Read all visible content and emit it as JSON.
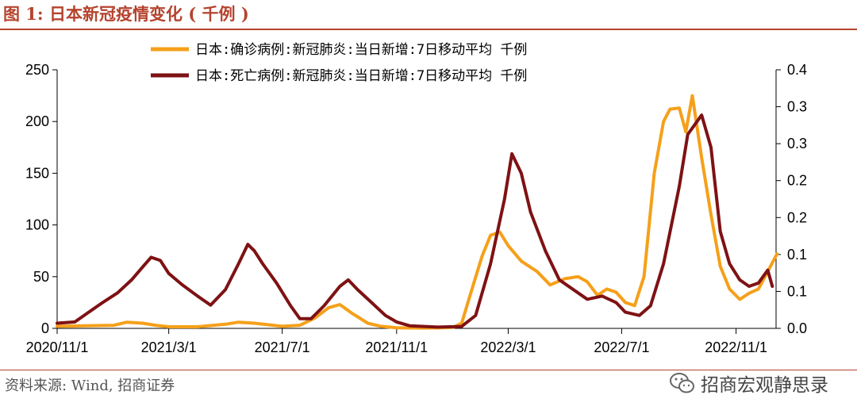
{
  "header": {
    "title": "图 1:  日本新冠疫情变化 ( 千例 )"
  },
  "footer": {
    "source": "资料来源:  Wind, 招商证券",
    "watermark": "招商宏观静思录"
  },
  "chart_data": {
    "type": "line",
    "x_tick_labels": [
      "2020/11/1",
      "2021/3/1",
      "2021/7/1",
      "2021/11/1",
      "2022/3/1",
      "2022/7/1",
      "2022/11/1"
    ],
    "y_left": {
      "range": [
        0,
        250
      ],
      "ticks": [
        "0",
        "50",
        "100",
        "150",
        "200",
        "250"
      ]
    },
    "y_right": {
      "range": [
        0,
        0.4
      ],
      "ticks": [
        "0.0",
        "0.1",
        "0.1",
        "0.2",
        "0.2",
        "0.3",
        "0.3",
        "0.4"
      ]
    },
    "legend_position": "top-center",
    "grid": false,
    "series": [
      {
        "name": "日本:确诊病例:新冠肺炎:当日新增:7日移动平均  千例",
        "axis": "left",
        "color": "#f5a01a",
        "points": [
          [
            "2020-11-01",
            2
          ],
          [
            "2020-12-01",
            2.5
          ],
          [
            "2021-01-01",
            3
          ],
          [
            "2021-01-15",
            6
          ],
          [
            "2021-02-01",
            5
          ],
          [
            "2021-02-15",
            3
          ],
          [
            "2021-03-01",
            1.5
          ],
          [
            "2021-04-01",
            1.5
          ],
          [
            "2021-05-01",
            4
          ],
          [
            "2021-05-15",
            6
          ],
          [
            "2021-06-01",
            5
          ],
          [
            "2021-07-01",
            2
          ],
          [
            "2021-07-20",
            3
          ],
          [
            "2021-08-05",
            10
          ],
          [
            "2021-08-20",
            20
          ],
          [
            "2021-09-01",
            23
          ],
          [
            "2021-09-15",
            14
          ],
          [
            "2021-10-01",
            5
          ],
          [
            "2021-10-15",
            2
          ],
          [
            "2021-11-01",
            0.5
          ],
          [
            "2021-12-01",
            0.3
          ],
          [
            "2021-12-20",
            0.5
          ],
          [
            "2022-01-01",
            1
          ],
          [
            "2022-01-10",
            5
          ],
          [
            "2022-01-20",
            35
          ],
          [
            "2022-02-01",
            70
          ],
          [
            "2022-02-10",
            90
          ],
          [
            "2022-02-20",
            93
          ],
          [
            "2022-03-01",
            80
          ],
          [
            "2022-03-15",
            65
          ],
          [
            "2022-04-01",
            55
          ],
          [
            "2022-04-15",
            42
          ],
          [
            "2022-05-01",
            48
          ],
          [
            "2022-05-15",
            50
          ],
          [
            "2022-05-25",
            45
          ],
          [
            "2022-06-05",
            32
          ],
          [
            "2022-06-15",
            38
          ],
          [
            "2022-06-25",
            35
          ],
          [
            "2022-07-05",
            25
          ],
          [
            "2022-07-15",
            22
          ],
          [
            "2022-07-25",
            50
          ],
          [
            "2022-08-05",
            150
          ],
          [
            "2022-08-15",
            200
          ],
          [
            "2022-08-22",
            212
          ],
          [
            "2022-09-01",
            213
          ],
          [
            "2022-09-08",
            190
          ],
          [
            "2022-09-15",
            225
          ],
          [
            "2022-09-25",
            165
          ],
          [
            "2022-10-05",
            110
          ],
          [
            "2022-10-15",
            60
          ],
          [
            "2022-10-25",
            38
          ],
          [
            "2022-11-05",
            28
          ],
          [
            "2022-11-15",
            34
          ],
          [
            "2022-11-25",
            38
          ],
          [
            "2022-12-05",
            55
          ],
          [
            "2022-12-15",
            72
          ]
        ]
      },
      {
        "name": "日本:死亡病例:新冠肺炎:当日新增:7日移动平均  千例",
        "axis": "right",
        "color": "#7e1214",
        "points": [
          [
            "2020-11-01",
            0.008
          ],
          [
            "2020-11-20",
            0.01
          ],
          [
            "2020-12-05",
            0.025
          ],
          [
            "2020-12-20",
            0.04
          ],
          [
            "2021-01-05",
            0.055
          ],
          [
            "2021-01-20",
            0.075
          ],
          [
            "2021-02-01",
            0.095
          ],
          [
            "2021-02-10",
            0.11
          ],
          [
            "2021-02-20",
            0.105
          ],
          [
            "2021-03-01",
            0.085
          ],
          [
            "2021-03-15",
            0.068
          ],
          [
            "2021-04-01",
            0.05
          ],
          [
            "2021-04-15",
            0.036
          ],
          [
            "2021-05-01",
            0.06
          ],
          [
            "2021-05-15",
            0.1
          ],
          [
            "2021-05-25",
            0.13
          ],
          [
            "2021-06-01",
            0.12
          ],
          [
            "2021-06-10",
            0.1
          ],
          [
            "2021-06-25",
            0.07
          ],
          [
            "2021-07-10",
            0.035
          ],
          [
            "2021-07-20",
            0.015
          ],
          [
            "2021-08-01",
            0.015
          ],
          [
            "2021-08-15",
            0.035
          ],
          [
            "2021-09-01",
            0.065
          ],
          [
            "2021-09-10",
            0.075
          ],
          [
            "2021-09-20",
            0.06
          ],
          [
            "2021-10-05",
            0.04
          ],
          [
            "2021-10-20",
            0.02
          ],
          [
            "2021-11-01",
            0.01
          ],
          [
            "2021-11-15",
            0.004
          ],
          [
            "2021-12-15",
            0.002
          ],
          [
            "2022-01-10",
            0.003
          ],
          [
            "2022-01-25",
            0.02
          ],
          [
            "2022-02-10",
            0.1
          ],
          [
            "2022-02-25",
            0.2
          ],
          [
            "2022-03-05",
            0.27
          ],
          [
            "2022-03-15",
            0.24
          ],
          [
            "2022-03-25",
            0.18
          ],
          [
            "2022-04-10",
            0.12
          ],
          [
            "2022-04-25",
            0.075
          ],
          [
            "2022-05-15",
            0.055
          ],
          [
            "2022-05-25",
            0.045
          ],
          [
            "2022-06-10",
            0.05
          ],
          [
            "2022-06-25",
            0.04
          ],
          [
            "2022-07-05",
            0.025
          ],
          [
            "2022-07-20",
            0.02
          ],
          [
            "2022-08-01",
            0.035
          ],
          [
            "2022-08-15",
            0.1
          ],
          [
            "2022-09-01",
            0.22
          ],
          [
            "2022-09-10",
            0.3
          ],
          [
            "2022-09-20",
            0.32
          ],
          [
            "2022-09-25",
            0.33
          ],
          [
            "2022-10-05",
            0.28
          ],
          [
            "2022-10-15",
            0.15
          ],
          [
            "2022-10-25",
            0.1
          ],
          [
            "2022-11-05",
            0.075
          ],
          [
            "2022-11-15",
            0.065
          ],
          [
            "2022-11-25",
            0.07
          ],
          [
            "2022-12-05",
            0.09
          ],
          [
            "2022-12-10",
            0.065
          ]
        ]
      }
    ]
  }
}
